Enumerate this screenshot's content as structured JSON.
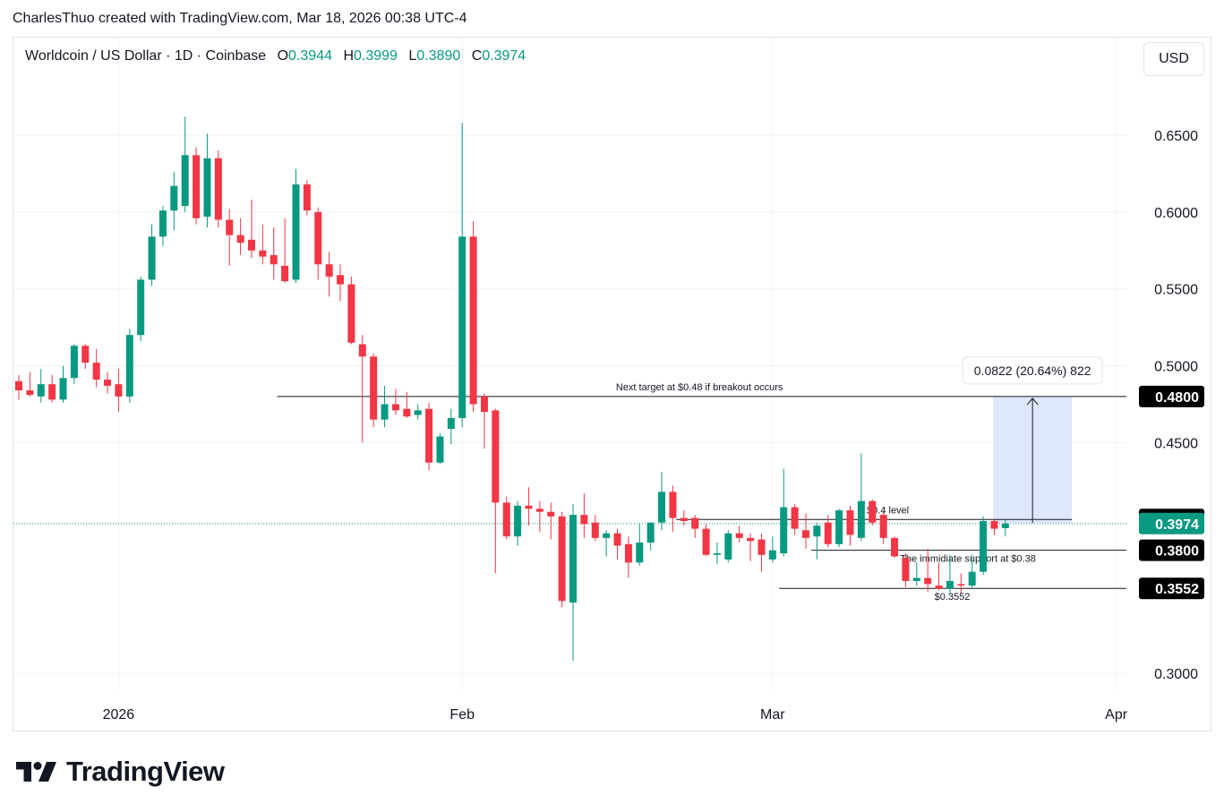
{
  "caption": "CharlesThuo created with TradingView.com, Mar 18, 2026 00:38 UTC-4",
  "legend": {
    "symbol": "Worldcoin / US Dollar · 1D · Coinbase",
    "o_label": "O",
    "o": "0.3944",
    "h_label": "H",
    "h": "0.3999",
    "l_label": "L",
    "l": "0.3890",
    "c_label": "C",
    "c": "0.3974"
  },
  "currency": "USD",
  "brand": "TradingView",
  "colors": {
    "up": "#089981",
    "down": "#f23645",
    "measure_fill": "#dbe4fb",
    "grid": "#f0f3fa"
  },
  "chart_data": {
    "type": "candlestick",
    "title": "Worldcoin / US Dollar · 1D · Coinbase",
    "x_ticks": [
      "2026",
      "Feb",
      "Mar",
      "Apr"
    ],
    "y_ticks": [
      "0.3000",
      "0.4500",
      "0.5000",
      "0.5500",
      "0.6000",
      "0.6500"
    ],
    "ylim": [
      0.28,
      0.67
    ],
    "grid": true,
    "candles": [
      {
        "date": "2025-12-23",
        "o": 0.49,
        "h": 0.494,
        "l": 0.478,
        "c": 0.484
      },
      {
        "date": "2025-12-24",
        "o": 0.484,
        "h": 0.496,
        "l": 0.48,
        "c": 0.481
      },
      {
        "date": "2025-12-25",
        "o": 0.48,
        "h": 0.498,
        "l": 0.476,
        "c": 0.488
      },
      {
        "date": "2025-12-26",
        "o": 0.488,
        "h": 0.494,
        "l": 0.476,
        "c": 0.478
      },
      {
        "date": "2025-12-27",
        "o": 0.478,
        "h": 0.5,
        "l": 0.476,
        "c": 0.492
      },
      {
        "date": "2025-12-28",
        "o": 0.492,
        "h": 0.514,
        "l": 0.488,
        "c": 0.513
      },
      {
        "date": "2025-12-29",
        "o": 0.513,
        "h": 0.514,
        "l": 0.498,
        "c": 0.502
      },
      {
        "date": "2025-12-30",
        "o": 0.502,
        "h": 0.511,
        "l": 0.486,
        "c": 0.491
      },
      {
        "date": "2025-12-31",
        "o": 0.491,
        "h": 0.496,
        "l": 0.482,
        "c": 0.487
      },
      {
        "date": "2026-01-01",
        "o": 0.488,
        "h": 0.498,
        "l": 0.47,
        "c": 0.48
      },
      {
        "date": "2026-01-02",
        "o": 0.48,
        "h": 0.524,
        "l": 0.476,
        "c": 0.52
      },
      {
        "date": "2026-01-03",
        "o": 0.52,
        "h": 0.558,
        "l": 0.516,
        "c": 0.556
      },
      {
        "date": "2026-01-04",
        "o": 0.556,
        "h": 0.592,
        "l": 0.552,
        "c": 0.584
      },
      {
        "date": "2026-01-05",
        "o": 0.584,
        "h": 0.604,
        "l": 0.578,
        "c": 0.601
      },
      {
        "date": "2026-01-06",
        "o": 0.601,
        "h": 0.626,
        "l": 0.588,
        "c": 0.617
      },
      {
        "date": "2026-01-07",
        "o": 0.604,
        "h": 0.662,
        "l": 0.6,
        "c": 0.637
      },
      {
        "date": "2026-01-08",
        "o": 0.637,
        "h": 0.642,
        "l": 0.592,
        "c": 0.596
      },
      {
        "date": "2026-01-09",
        "o": 0.597,
        "h": 0.651,
        "l": 0.59,
        "c": 0.635
      },
      {
        "date": "2026-01-10",
        "o": 0.635,
        "h": 0.64,
        "l": 0.59,
        "c": 0.595
      },
      {
        "date": "2026-01-11",
        "o": 0.595,
        "h": 0.602,
        "l": 0.565,
        "c": 0.585
      },
      {
        "date": "2026-01-12",
        "o": 0.585,
        "h": 0.596,
        "l": 0.572,
        "c": 0.58
      },
      {
        "date": "2026-01-13",
        "o": 0.582,
        "h": 0.608,
        "l": 0.57,
        "c": 0.575
      },
      {
        "date": "2026-01-14",
        "o": 0.575,
        "h": 0.592,
        "l": 0.566,
        "c": 0.571
      },
      {
        "date": "2026-01-15",
        "o": 0.572,
        "h": 0.59,
        "l": 0.556,
        "c": 0.566
      },
      {
        "date": "2026-01-16",
        "o": 0.565,
        "h": 0.596,
        "l": 0.554,
        "c": 0.555
      },
      {
        "date": "2026-01-17",
        "o": 0.556,
        "h": 0.628,
        "l": 0.554,
        "c": 0.618
      },
      {
        "date": "2026-01-18",
        "o": 0.618,
        "h": 0.621,
        "l": 0.598,
        "c": 0.601
      },
      {
        "date": "2026-01-19",
        "o": 0.6,
        "h": 0.603,
        "l": 0.556,
        "c": 0.566
      },
      {
        "date": "2026-01-20",
        "o": 0.566,
        "h": 0.574,
        "l": 0.545,
        "c": 0.558
      },
      {
        "date": "2026-01-21",
        "o": 0.559,
        "h": 0.566,
        "l": 0.542,
        "c": 0.553
      },
      {
        "date": "2026-01-22",
        "o": 0.553,
        "h": 0.558,
        "l": 0.514,
        "c": 0.515
      },
      {
        "date": "2026-01-23",
        "o": 0.514,
        "h": 0.52,
        "l": 0.45,
        "c": 0.506
      },
      {
        "date": "2026-01-24",
        "o": 0.506,
        "h": 0.508,
        "l": 0.46,
        "c": 0.465
      },
      {
        "date": "2026-01-25",
        "o": 0.465,
        "h": 0.487,
        "l": 0.46,
        "c": 0.475
      },
      {
        "date": "2026-01-26",
        "o": 0.475,
        "h": 0.485,
        "l": 0.468,
        "c": 0.471
      },
      {
        "date": "2026-01-27",
        "o": 0.472,
        "h": 0.483,
        "l": 0.466,
        "c": 0.467
      },
      {
        "date": "2026-01-28",
        "o": 0.468,
        "h": 0.475,
        "l": 0.465,
        "c": 0.471
      },
      {
        "date": "2026-01-29",
        "o": 0.472,
        "h": 0.476,
        "l": 0.432,
        "c": 0.437
      },
      {
        "date": "2026-01-30",
        "o": 0.437,
        "h": 0.456,
        "l": 0.436,
        "c": 0.454
      },
      {
        "date": "2026-01-31",
        "o": 0.459,
        "h": 0.472,
        "l": 0.449,
        "c": 0.466
      },
      {
        "date": "2026-02-01",
        "o": 0.466,
        "h": 0.658,
        "l": 0.46,
        "c": 0.584
      },
      {
        "date": "2026-02-02",
        "o": 0.584,
        "h": 0.594,
        "l": 0.47,
        "c": 0.475
      },
      {
        "date": "2026-02-03",
        "o": 0.48,
        "h": 0.482,
        "l": 0.446,
        "c": 0.47
      },
      {
        "date": "2026-02-04",
        "o": 0.471,
        "h": 0.472,
        "l": 0.365,
        "c": 0.411
      },
      {
        "date": "2026-02-05",
        "o": 0.411,
        "h": 0.415,
        "l": 0.387,
        "c": 0.389
      },
      {
        "date": "2026-02-06",
        "o": 0.389,
        "h": 0.412,
        "l": 0.383,
        "c": 0.409
      },
      {
        "date": "2026-02-07",
        "o": 0.409,
        "h": 0.421,
        "l": 0.396,
        "c": 0.407
      },
      {
        "date": "2026-02-08",
        "o": 0.407,
        "h": 0.412,
        "l": 0.392,
        "c": 0.405
      },
      {
        "date": "2026-02-09",
        "o": 0.405,
        "h": 0.411,
        "l": 0.387,
        "c": 0.402
      },
      {
        "date": "2026-02-10",
        "o": 0.402,
        "h": 0.405,
        "l": 0.343,
        "c": 0.347
      },
      {
        "date": "2026-02-11",
        "o": 0.346,
        "h": 0.41,
        "l": 0.308,
        "c": 0.403
      },
      {
        "date": "2026-02-12",
        "o": 0.403,
        "h": 0.417,
        "l": 0.388,
        "c": 0.397
      },
      {
        "date": "2026-02-13",
        "o": 0.398,
        "h": 0.403,
        "l": 0.386,
        "c": 0.388
      },
      {
        "date": "2026-02-14",
        "o": 0.388,
        "h": 0.393,
        "l": 0.376,
        "c": 0.391
      },
      {
        "date": "2026-02-15",
        "o": 0.391,
        "h": 0.394,
        "l": 0.374,
        "c": 0.383
      },
      {
        "date": "2026-02-16",
        "o": 0.384,
        "h": 0.389,
        "l": 0.362,
        "c": 0.372
      },
      {
        "date": "2026-02-17",
        "o": 0.372,
        "h": 0.397,
        "l": 0.37,
        "c": 0.385
      },
      {
        "date": "2026-02-18",
        "o": 0.385,
        "h": 0.398,
        "l": 0.38,
        "c": 0.398
      },
      {
        "date": "2026-02-19",
        "o": 0.398,
        "h": 0.431,
        "l": 0.393,
        "c": 0.418
      },
      {
        "date": "2026-02-20",
        "o": 0.418,
        "h": 0.422,
        "l": 0.392,
        "c": 0.401
      },
      {
        "date": "2026-02-21",
        "o": 0.401,
        "h": 0.406,
        "l": 0.396,
        "c": 0.399
      },
      {
        "date": "2026-02-22",
        "o": 0.401,
        "h": 0.403,
        "l": 0.388,
        "c": 0.394
      },
      {
        "date": "2026-02-23",
        "o": 0.394,
        "h": 0.397,
        "l": 0.376,
        "c": 0.377
      },
      {
        "date": "2026-02-24",
        "o": 0.377,
        "h": 0.385,
        "l": 0.371,
        "c": 0.378
      },
      {
        "date": "2026-02-25",
        "o": 0.374,
        "h": 0.393,
        "l": 0.372,
        "c": 0.391
      },
      {
        "date": "2026-02-26",
        "o": 0.391,
        "h": 0.396,
        "l": 0.385,
        "c": 0.388
      },
      {
        "date": "2026-02-27",
        "o": 0.388,
        "h": 0.391,
        "l": 0.373,
        "c": 0.386
      },
      {
        "date": "2026-02-28",
        "o": 0.387,
        "h": 0.391,
        "l": 0.366,
        "c": 0.377
      },
      {
        "date": "2026-03-01",
        "o": 0.374,
        "h": 0.389,
        "l": 0.372,
        "c": 0.38
      },
      {
        "date": "2026-03-02",
        "o": 0.378,
        "h": 0.433,
        "l": 0.376,
        "c": 0.408
      },
      {
        "date": "2026-03-03",
        "o": 0.408,
        "h": 0.41,
        "l": 0.39,
        "c": 0.394
      },
      {
        "date": "2026-03-04",
        "o": 0.393,
        "h": 0.404,
        "l": 0.381,
        "c": 0.388
      },
      {
        "date": "2026-03-05",
        "o": 0.389,
        "h": 0.398,
        "l": 0.374,
        "c": 0.396
      },
      {
        "date": "2026-03-06",
        "o": 0.398,
        "h": 0.403,
        "l": 0.382,
        "c": 0.384
      },
      {
        "date": "2026-03-07",
        "o": 0.384,
        "h": 0.407,
        "l": 0.382,
        "c": 0.406
      },
      {
        "date": "2026-03-08",
        "o": 0.406,
        "h": 0.409,
        "l": 0.383,
        "c": 0.39
      },
      {
        "date": "2026-03-09",
        "o": 0.388,
        "h": 0.443,
        "l": 0.386,
        "c": 0.412
      },
      {
        "date": "2026-03-10",
        "o": 0.412,
        "h": 0.413,
        "l": 0.396,
        "c": 0.398
      },
      {
        "date": "2026-03-11",
        "o": 0.403,
        "h": 0.405,
        "l": 0.384,
        "c": 0.388
      },
      {
        "date": "2026-03-12",
        "o": 0.388,
        "h": 0.389,
        "l": 0.375,
        "c": 0.376
      },
      {
        "date": "2026-03-13",
        "o": 0.375,
        "h": 0.378,
        "l": 0.356,
        "c": 0.36
      },
      {
        "date": "2026-03-14",
        "o": 0.36,
        "h": 0.372,
        "l": 0.357,
        "c": 0.362
      },
      {
        "date": "2026-03-15",
        "o": 0.362,
        "h": 0.381,
        "l": 0.353,
        "c": 0.358
      },
      {
        "date": "2026-03-16",
        "o": 0.357,
        "h": 0.372,
        "l": 0.354,
        "c": 0.355
      },
      {
        "date": "2026-03-17",
        "o": 0.355,
        "h": 0.377,
        "l": 0.351,
        "c": 0.36
      },
      {
        "date": "2026-03-18",
        "o": 0.358,
        "h": 0.365,
        "l": 0.352,
        "c": 0.357
      },
      {
        "date": "2026-03-19",
        "o": 0.357,
        "h": 0.377,
        "l": 0.355,
        "c": 0.366
      },
      {
        "date": "2026-03-20",
        "o": 0.366,
        "h": 0.402,
        "l": 0.364,
        "c": 0.399
      },
      {
        "date": "2026-03-21",
        "o": 0.399,
        "h": 0.4,
        "l": 0.39,
        "c": 0.394
      },
      {
        "date": "2026-03-22",
        "o": 0.3944,
        "h": 0.3999,
        "l": 0.389,
        "c": 0.3974
      }
    ],
    "last_price": "0.3974",
    "levels": [
      {
        "value": 0.48,
        "label": "0.4800",
        "note": "Next target at $0.48 if breakout occurs"
      },
      {
        "value": 0.4,
        "label": "0.4000",
        "note": "$0.4 level"
      },
      {
        "value": 0.38,
        "label": "0.3800",
        "note": "The immidiate support at $0.38"
      },
      {
        "value": 0.3552,
        "label": "0.3552",
        "note": "$0.3552"
      }
    ],
    "measure": {
      "from": 0.3978,
      "to": 0.48,
      "label": "0.0822 (20.64%) 822"
    }
  }
}
